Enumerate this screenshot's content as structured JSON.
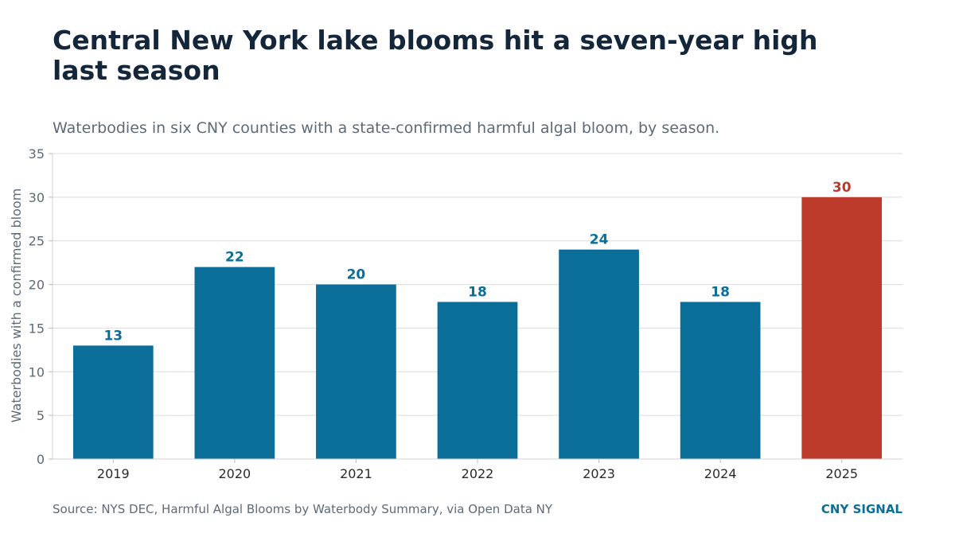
{
  "header": {
    "title": "Central New York lake blooms hit a seven-year high last season",
    "subtitle": "Waterbodies in six CNY counties with a state-confirmed harmful algal bloom, by season."
  },
  "footer": {
    "source": "Source: NYS DEC, Harmful Algal Blooms by Waterbody Summary, via Open Data NY",
    "brand": "CNY SIGNAL"
  },
  "chart_data": {
    "type": "bar",
    "categories": [
      "2019",
      "2020",
      "2021",
      "2022",
      "2023",
      "2024",
      "2025"
    ],
    "values": [
      13,
      22,
      20,
      18,
      24,
      18,
      30
    ],
    "title": "Central New York lake blooms hit a seven-year high last season",
    "subtitle": "Waterbodies in six CNY counties with a state-confirmed harmful algal bloom, by season.",
    "xlabel": "",
    "ylabel": "Waterbodies with a confirmed bloom",
    "ylim": [
      0,
      35
    ],
    "yticks": [
      0,
      5,
      10,
      15,
      20,
      25,
      30,
      35
    ],
    "grid": true,
    "legend": "none",
    "data_labels": true,
    "highlight_category": "2025",
    "colors": {
      "bar": "#0b6e98",
      "highlight": "#bc3a2a",
      "grid": "#dcdcdc",
      "axis_text": "#5d6b78",
      "tick_label": "#2a2a2a"
    }
  }
}
